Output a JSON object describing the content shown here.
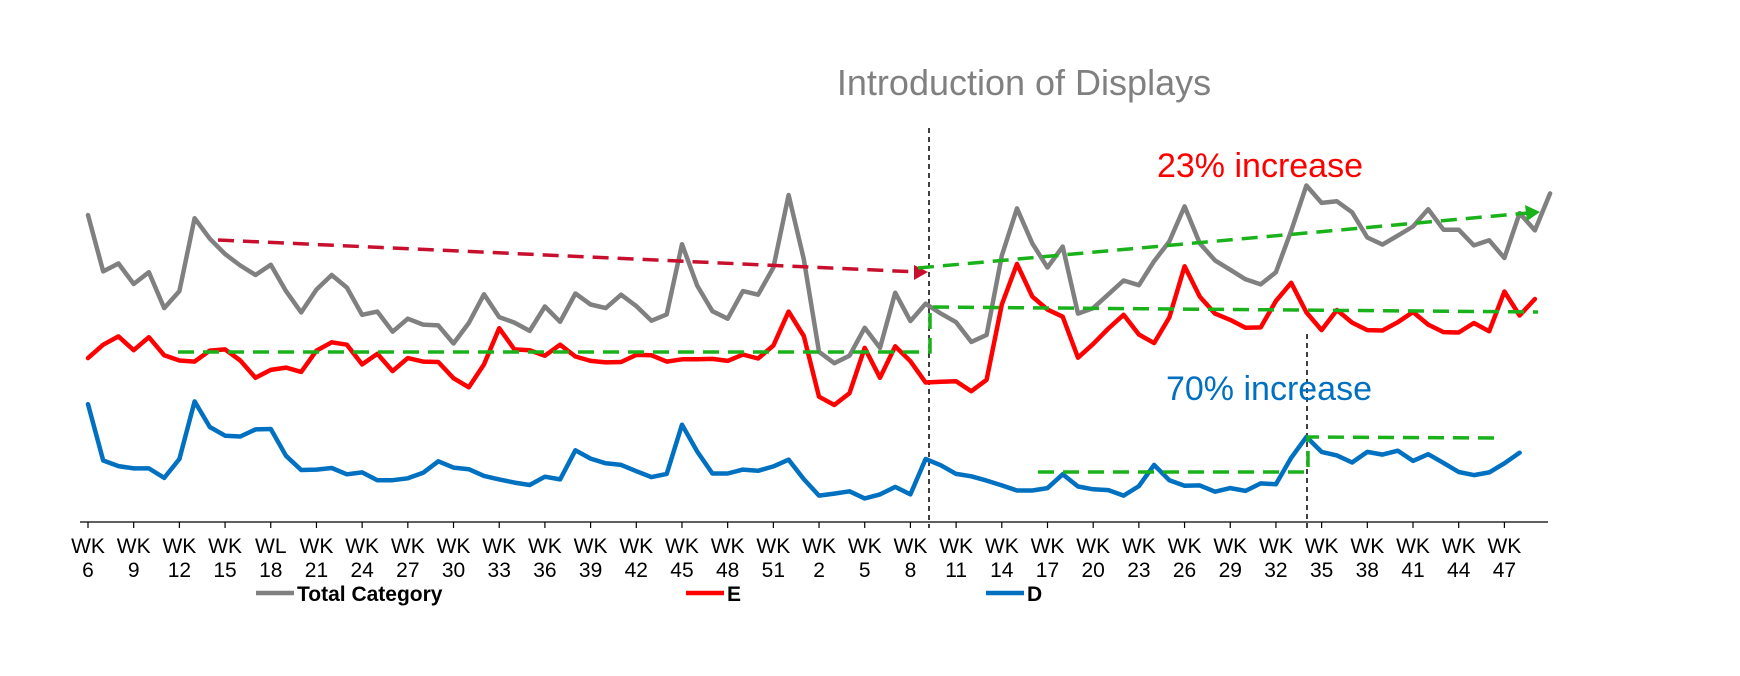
{
  "chart_data": {
    "type": "line",
    "title": "Introduction of Displays",
    "x_tick_labels": [
      [
        "WK",
        "6"
      ],
      [
        "WK",
        "9"
      ],
      [
        "WK",
        "12"
      ],
      [
        "WK",
        "15"
      ],
      [
        "WL",
        "18"
      ],
      [
        "WK",
        "21"
      ],
      [
        "WK",
        "24"
      ],
      [
        "WK",
        "27"
      ],
      [
        "WK",
        "30"
      ],
      [
        "WK",
        "33"
      ],
      [
        "WK",
        "36"
      ],
      [
        "WK",
        "39"
      ],
      [
        "WK",
        "42"
      ],
      [
        "WK",
        "45"
      ],
      [
        "WK",
        "48"
      ],
      [
        "WK",
        "51"
      ],
      [
        "WK",
        "2"
      ],
      [
        "WK",
        "5"
      ],
      [
        "WK",
        "8"
      ],
      [
        "WK",
        "11"
      ],
      [
        "WK",
        "14"
      ],
      [
        "WK",
        "17"
      ],
      [
        "WK",
        "20"
      ],
      [
        "WK",
        "23"
      ],
      [
        "WK",
        "26"
      ],
      [
        "WK",
        "29"
      ],
      [
        "WK",
        "32"
      ],
      [
        "WK",
        "35"
      ],
      [
        "WK",
        "38"
      ],
      [
        "WK",
        "41"
      ],
      [
        "WK",
        "44"
      ],
      [
        "WK",
        "47"
      ]
    ],
    "ylim": [
      0,
      100
    ],
    "grid": false,
    "legend_position": "bottom",
    "series": [
      {
        "name": "Total Category",
        "color": "#808080",
        "values": [
          77.9,
          63.6,
          65.6,
          60.4,
          63.4,
          54.3,
          58.6,
          77.1,
          71.9,
          68.0,
          65.1,
          62.7,
          65.3,
          58.6,
          53.2,
          59.0,
          62.7,
          59.5,
          52.6,
          53.4,
          48.3,
          51.6,
          50.1,
          49.9,
          45.3,
          50.5,
          57.8,
          52.0,
          50.6,
          48.5,
          54.7,
          50.8,
          58.0,
          55.2,
          54.3,
          57.7,
          54.8,
          51.1,
          52.7,
          70.5,
          60.0,
          53.5,
          51.6,
          58.6,
          57.7,
          64.6,
          83.0,
          66.7,
          43.2,
          40.3,
          42.2,
          49.3,
          44.2,
          58.2,
          51.0,
          55.4,
          52.9,
          50.7,
          45.7,
          47.5,
          67.6,
          79.6,
          70.7,
          64.6,
          69.9,
          52.9,
          54.3,
          57.8,
          61.3,
          60.1,
          66.2,
          71.2,
          80.1,
          70.7,
          66.4,
          64.0,
          61.6,
          60.3,
          63.4,
          73.9,
          85.4,
          81.0,
          81.4,
          78.6,
          72.2,
          70.4,
          72.7,
          75.0,
          79.4,
          74.2,
          74.2,
          70.2,
          71.5,
          67.0,
          78.4,
          74.0,
          83.4
        ],
        "annotation": {
          "text": "23% increase",
          "color": "#ff0000"
        }
      },
      {
        "name": "E",
        "color": "#ff0000",
        "values": [
          41.6,
          45.0,
          47.1,
          43.6,
          46.9,
          42.3,
          41.0,
          40.7,
          43.5,
          43.8,
          41.0,
          36.6,
          38.6,
          39.2,
          38.1,
          43.5,
          45.6,
          45.0,
          40.0,
          42.7,
          38.3,
          41.6,
          40.7,
          40.6,
          36.5,
          34.2,
          40.0,
          49.2,
          43.8,
          43.6,
          42.2,
          45.0,
          42.0,
          40.9,
          40.5,
          40.6,
          42.4,
          42.3,
          40.7,
          41.3,
          41.3,
          41.4,
          40.9,
          42.5,
          41.5,
          44.8,
          53.4,
          47.2,
          31.8,
          29.7,
          32.7,
          44.2,
          36.6,
          44.6,
          40.8,
          35.4,
          35.6,
          35.7,
          33.2,
          36.1,
          55.2,
          65.5,
          57.2,
          53.9,
          52.1,
          41.7,
          45.2,
          49.1,
          52.6,
          47.6,
          45.4,
          51.9,
          64.9,
          57.2,
          52.9,
          51.3,
          49.3,
          49.4,
          56.1,
          60.7,
          53.2,
          48.7,
          53.8,
          50.6,
          48.7,
          48.6,
          50.7,
          53.3,
          50.1,
          48.2,
          48.1,
          50.5,
          48.4,
          58.5,
          52.4,
          56.6
        ],
        "annotation": {
          "text": "70% increase",
          "color": "#0070c0"
        }
      },
      {
        "name": "D",
        "color": "#0070c0",
        "values": [
          29.9,
          15.6,
          14.2,
          13.6,
          13.6,
          11.2,
          16.0,
          30.6,
          24.1,
          21.9,
          21.7,
          23.5,
          23.6,
          16.8,
          13.2,
          13.3,
          13.7,
          12.1,
          12.6,
          10.6,
          10.6,
          11.1,
          12.5,
          15.4,
          13.8,
          13.4,
          11.7,
          10.8,
          10.0,
          9.4,
          11.5,
          10.8,
          18.2,
          16.1,
          14.9,
          14.5,
          12.9,
          11.4,
          12.2,
          24.7,
          17.9,
          12.3,
          12.3,
          13.3,
          13.0,
          14.1,
          15.8,
          10.9,
          6.7,
          7.2,
          7.8,
          6.0,
          7.0,
          8.9,
          7.0,
          16.0,
          14.4,
          12.2,
          11.6,
          10.5,
          9.3,
          8.0,
          8.0,
          8.6,
          12.1,
          9.0,
          8.3,
          8.1,
          6.7,
          9.1,
          14.5,
          10.6,
          9.2,
          9.3,
          7.7,
          8.6,
          7.9,
          9.8,
          9.6,
          16.3,
          21.6,
          17.8,
          16.9,
          15.1,
          17.8,
          17.1,
          18.1,
          15.5,
          17.2,
          15.0,
          12.7,
          11.9,
          12.6,
          14.9,
          17.6
        ]
      }
    ]
  }
}
